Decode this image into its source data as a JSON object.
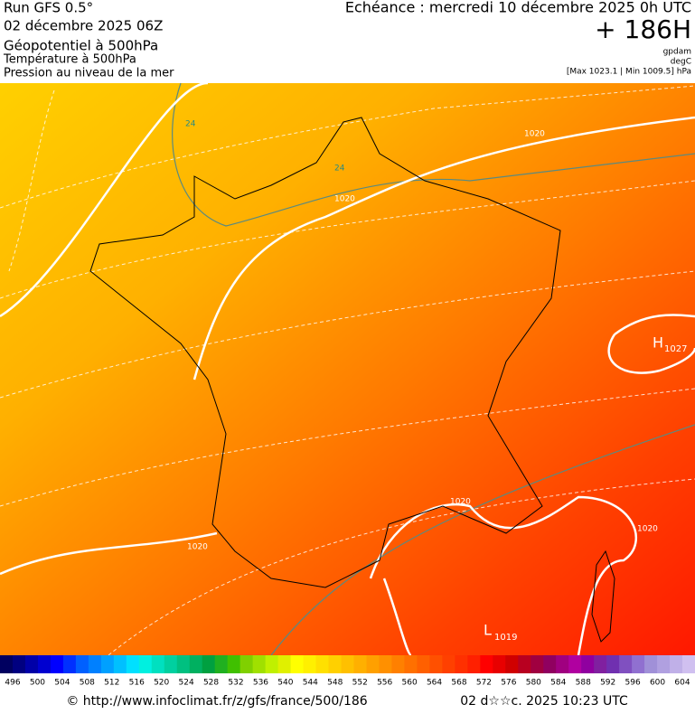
{
  "header": {
    "run": "Run GFS 0.5°",
    "date": "02 décembre 2025 06Z",
    "field1": "Géopotentiel à 500hPa",
    "field2": "Température à 500hPa",
    "field3": "Pression au niveau de la mer",
    "echeance": "Echéance : mercredi 10 décembre 2025 0h UTC",
    "lead": "+ 186H",
    "unit1": "gpdam",
    "unit2": "degC",
    "range": "[Max 1023.1 | Min 1009.5] hPa"
  },
  "map": {
    "labels": [
      "1020",
      "1020",
      "1020",
      "1020",
      "1020",
      "24",
      "24",
      "H",
      "1027",
      "L",
      "1019"
    ]
  },
  "colorbar": {
    "labels": [
      "496",
      "500",
      "504",
      "508",
      "512",
      "516",
      "520",
      "524",
      "528",
      "532",
      "536",
      "540",
      "544",
      "548",
      "552",
      "556",
      "560",
      "564",
      "568",
      "572",
      "576",
      "580",
      "584",
      "588",
      "592",
      "596",
      "600",
      "604"
    ],
    "colors": [
      "#000060",
      "#000080",
      "#0000a8",
      "#0000d0",
      "#0000ff",
      "#0030ff",
      "#0060ff",
      "#0080ff",
      "#00a0ff",
      "#00c0ff",
      "#00e0ff",
      "#00f0e0",
      "#00e0c0",
      "#00d0a0",
      "#00c080",
      "#00b060",
      "#00a040",
      "#20b020",
      "#40c000",
      "#80d000",
      "#a0e000",
      "#c0f000",
      "#e0f000",
      "#ffff00",
      "#fff000",
      "#ffe000",
      "#ffd000",
      "#ffc000",
      "#ffb000",
      "#ffa000",
      "#ff9000",
      "#ff8000",
      "#ff7000",
      "#ff6000",
      "#ff5000",
      "#ff4000",
      "#ff3000",
      "#ff2000",
      "#ff0000",
      "#e80000",
      "#d00000",
      "#b80020",
      "#a00040",
      "#900060",
      "#a00080",
      "#b000a0",
      "#9000a0",
      "#8020a0",
      "#7030b0",
      "#8050c0",
      "#9070d0",
      "#a090d8",
      "#b0a0e0",
      "#c0b0e8",
      "#d0c0f0"
    ]
  },
  "footer": {
    "url": "© http://www.infoclimat.fr/z/gfs/france/500/186",
    "stamp": "02 d☆☆c. 2025 10:23 UTC"
  }
}
